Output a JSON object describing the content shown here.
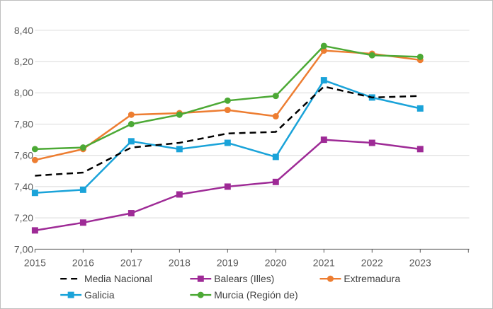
{
  "chart_data": {
    "type": "line",
    "title": "",
    "xlabel": "",
    "ylabel": "",
    "x": [
      2015,
      2016,
      2017,
      2018,
      2019,
      2020,
      2021,
      2022,
      2023
    ],
    "x_tick_labels": [
      "2015",
      "2016",
      "2017",
      "2018",
      "2019",
      "2020",
      "2021",
      "2022",
      "2023"
    ],
    "ylim": [
      7.0,
      8.4
    ],
    "y_ticks": [
      7.0,
      7.2,
      7.4,
      7.6,
      7.8,
      8.0,
      8.2,
      8.4
    ],
    "y_tick_labels": [
      "7,00",
      "7,20",
      "7,40",
      "7,60",
      "7,80",
      "8,00",
      "8,20",
      "8,40"
    ],
    "grid": true,
    "legend_position": "bottom",
    "series": [
      {
        "name": "Media Nacional",
        "color": "#000000",
        "dash": true,
        "marker": "none",
        "values": [
          7.47,
          7.49,
          7.65,
          7.68,
          7.74,
          7.75,
          8.04,
          7.97,
          7.98
        ]
      },
      {
        "name": "Balears (Illes)",
        "color": "#9e2a96",
        "dash": false,
        "marker": "square",
        "values": [
          7.12,
          7.17,
          7.23,
          7.35,
          7.4,
          7.43,
          7.7,
          7.68,
          7.64
        ]
      },
      {
        "name": "Extremadura",
        "color": "#ed7d31",
        "dash": false,
        "marker": "circle",
        "values": [
          7.57,
          7.64,
          7.86,
          7.87,
          7.89,
          7.85,
          8.27,
          8.25,
          8.21
        ]
      },
      {
        "name": "Galicia",
        "color": "#1aa3d9",
        "dash": false,
        "marker": "square",
        "values": [
          7.36,
          7.38,
          7.69,
          7.64,
          7.68,
          7.59,
          8.08,
          7.97,
          7.9
        ]
      },
      {
        "name": "Murcia (Región de)",
        "color": "#4ca935",
        "dash": false,
        "marker": "circle",
        "values": [
          7.64,
          7.65,
          7.8,
          7.86,
          7.95,
          7.98,
          8.3,
          8.24,
          8.23
        ]
      }
    ]
  }
}
